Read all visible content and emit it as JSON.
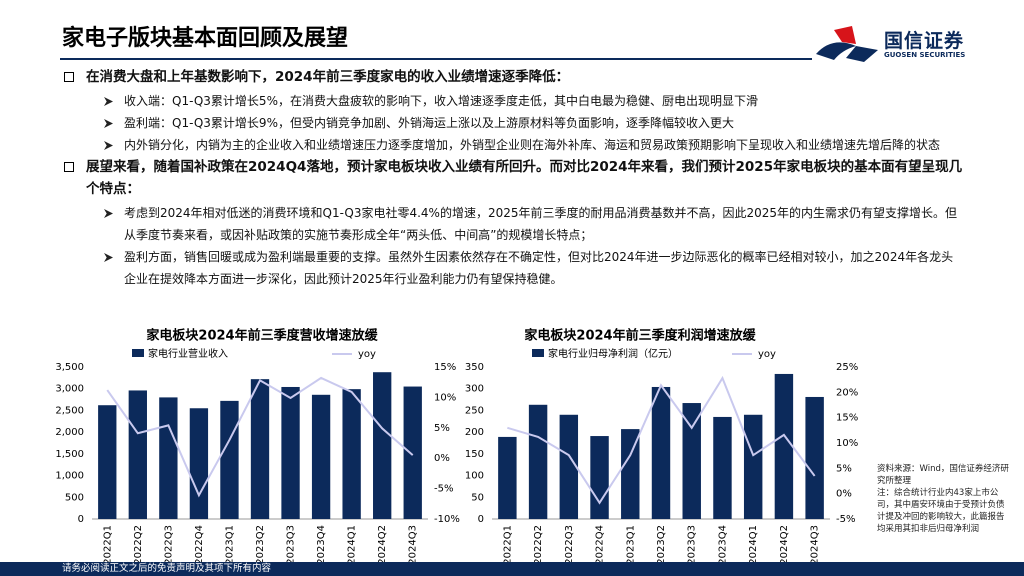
{
  "header": {
    "title": "家电子版块基本面回顾及展望",
    "logo_name": "国信证券",
    "logo_sub": "GUOSEN SECURITIES"
  },
  "bullets": [
    {
      "text": "在消费大盘和上年基数影响下，2024年前三季度家电的收入业绩增速逐季降低：",
      "subs": [
        "收入端：Q1-Q3累计增长5%，在消费大盘疲软的影响下，收入增速逐季度走低，其中白电最为稳健、厨电出现明显下滑",
        "盈利端：Q1-Q3累计增长9%，但受内销竞争加剧、外销海运上涨以及上游原材料等负面影响，逐季降幅较收入更大",
        "内外销分化，内销为主的企业收入和业绩增速压力逐季度增加，外销型企业则在海外补库、海运和贸易政策预期影响下呈现收入和业绩增速先增后降的状态"
      ]
    },
    {
      "text": "展望来看，随着国补政策在2024Q4落地，预计家电板块收入业绩有所回升。而对比2024年来看，我们预计2025年家电板块的基本面有望呈现几个特点：",
      "subs": [
        "考虑到2024年相对低迷的消费环境和Q1-Q3家电社零4.4%的增速，2025年前三季度的耐用品消费基数并不高，因此2025年的内生需求仍有望支撑增长。但从季度节奏来看，或因补贴政策的实施节奏形成全年“两头低、中间高”的规模增长特点；",
        "盈利方面，销售回暖或成为盈利端最重要的支撑。虽然外生因素依然存在不确定性，但对比2024年进一步边际恶化的概率已经相对较小，加之2024年各龙头企业在提效降本方面进一步深化，因此预计2025年行业盈利能力仍有望保持稳健。"
      ]
    }
  ],
  "chart_data": [
    {
      "type": "bar-line",
      "title": "家电板块2024年前三季度营收增速放缓",
      "categories": [
        "2022Q1",
        "2022Q2",
        "2022Q3",
        "2022Q4",
        "2023Q1",
        "2023Q2",
        "2023Q3",
        "2023Q4",
        "2024Q1",
        "2024Q2",
        "2024Q3"
      ],
      "series": [
        {
          "name": "家电行业营业收入",
          "color": "#0c2a5b",
          "type": "bar",
          "values": [
            2620,
            2960,
            2800,
            2550,
            2720,
            3220,
            3040,
            2860,
            2990,
            3380,
            3050
          ]
        },
        {
          "name": "yoy",
          "color": "#c9c9ee",
          "type": "line",
          "axis": "y2",
          "values": [
            11.2,
            4.1,
            5.4,
            -6.1,
            3.0,
            12.8,
            9.9,
            13.2,
            10.9,
            4.9,
            0.5
          ]
        }
      ],
      "ylim": [
        0,
        3500
      ],
      "yticks": [
        0,
        500,
        {
          "value": 1000,
          "label": "1,000"
        },
        {
          "value": 1500,
          "label": "1,500"
        },
        {
          "value": 2000,
          "label": "2,000"
        },
        {
          "value": 2500,
          "label": "2,500"
        },
        {
          "value": 3000,
          "label": "3,000"
        },
        {
          "value": 3500,
          "label": "3,500"
        }
      ],
      "y2lim": [
        -10,
        15
      ],
      "y2ticks": [
        {
          "value": -10,
          "label": "-10%"
        },
        {
          "value": -5,
          "label": "-5%"
        },
        {
          "value": 0,
          "label": "0%"
        },
        {
          "value": 5,
          "label": "5%"
        },
        {
          "value": 10,
          "label": "10%"
        },
        {
          "value": 15,
          "label": "15%"
        }
      ]
    },
    {
      "type": "bar-line",
      "title": "家电板块2024年前三季度利润增速放缓",
      "categories": [
        "2022Q1",
        "2022Q2",
        "2022Q3",
        "2022Q4",
        "2023Q1",
        "2023Q2",
        "2023Q3",
        "2023Q4",
        "2024Q1",
        "2024Q2",
        "2024Q3"
      ],
      "series": [
        {
          "name": "家电行业归母净利润（亿元）",
          "color": "#0c2a5b",
          "type": "bar",
          "values": [
            189,
            263,
            240,
            191,
            207,
            304,
            267,
            235,
            240,
            334,
            281
          ]
        },
        {
          "name": "yoy",
          "color": "#c9c9ee",
          "type": "line",
          "axis": "y2",
          "values": [
            13.0,
            11.2,
            7.6,
            -1.8,
            7.6,
            21.4,
            13.0,
            22.8,
            7.6,
            11.6,
            3.5
          ]
        }
      ],
      "ylim": [
        0,
        350
      ],
      "yticks": [
        0,
        50,
        100,
        150,
        200,
        250,
        300,
        350
      ],
      "y2lim": [
        -5,
        25
      ],
      "y2ticks": [
        {
          "value": -5,
          "label": "-5%"
        },
        {
          "value": 0,
          "label": "0%"
        },
        {
          "value": 5,
          "label": "5%"
        },
        {
          "value": 10,
          "label": "10%"
        },
        {
          "value": 15,
          "label": "15%"
        },
        {
          "value": 20,
          "label": "20%"
        },
        {
          "value": 25,
          "label": "25%"
        }
      ]
    }
  ],
  "notes": [
    "资料来源：Wind，国信证券经济研究所整理",
    "注：综合统计行业内43家上市公司，其中盾安环境由于受预计负债计提及冲回的影响较大，此篇报告均采用其扣非后归母净利润"
  ],
  "footer": "请务必阅读正文之后的免责声明及其项下所有内容"
}
